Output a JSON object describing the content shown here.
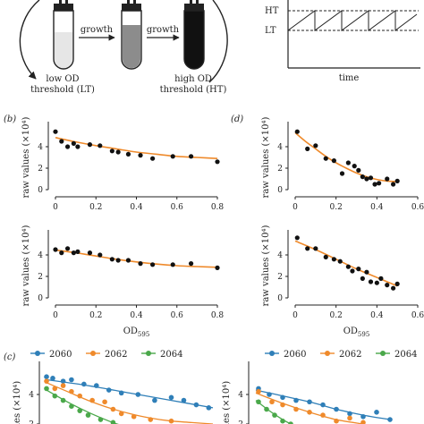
{
  "schematic": {
    "arrow_left": "growth",
    "arrow_right": "growth",
    "low_label_1": "low OD",
    "low_label_2": "threshold (LT)",
    "high_label_1": "high OD",
    "high_label_2": "threshold (HT)",
    "ht": "HT",
    "lt": "LT",
    "time": "time"
  },
  "colors": {
    "fit": "#ef8a2b",
    "dots": "#111111",
    "tube_low": "#e6e6e6",
    "tube_mid": "#8c8c8c",
    "tube_high": "#111111",
    "s2060": "#2f7fb8",
    "s2062": "#ef8a2b",
    "s2064": "#4aa84a"
  },
  "chart_data": [
    {
      "id": "b_top",
      "panel": "(b)",
      "type": "scatter",
      "xlim": [
        0,
        0.8
      ],
      "ylim": [
        0,
        6
      ],
      "xticks": [
        "0",
        "0.2",
        "0.4",
        "0.6",
        "0.8"
      ],
      "yticks": [
        "0",
        "2",
        "4"
      ],
      "ylabel": "raw values (×10⁴)",
      "points": [
        [
          0.0,
          5.4
        ],
        [
          0.03,
          4.5
        ],
        [
          0.06,
          4.0
        ],
        [
          0.09,
          4.3
        ],
        [
          0.11,
          4.0
        ],
        [
          0.17,
          4.2
        ],
        [
          0.22,
          4.1
        ],
        [
          0.28,
          3.6
        ],
        [
          0.31,
          3.5
        ],
        [
          0.36,
          3.3
        ],
        [
          0.42,
          3.2
        ],
        [
          0.48,
          2.9
        ],
        [
          0.58,
          3.1
        ],
        [
          0.67,
          3.1
        ],
        [
          0.8,
          2.6
        ]
      ],
      "fit": [
        [
          0,
          4.85
        ],
        [
          0.1,
          4.45
        ],
        [
          0.2,
          4.1
        ],
        [
          0.3,
          3.8
        ],
        [
          0.4,
          3.5
        ],
        [
          0.5,
          3.3
        ],
        [
          0.6,
          3.1
        ],
        [
          0.7,
          3.0
        ],
        [
          0.8,
          2.9
        ]
      ]
    },
    {
      "id": "b_bottom",
      "type": "scatter",
      "xlim": [
        0,
        0.8
      ],
      "ylim": [
        0,
        6
      ],
      "xticks": [
        "0",
        "0.2",
        "0.4",
        "0.6",
        "0.8"
      ],
      "yticks": [
        "0",
        "2",
        "4"
      ],
      "ylabel": "raw values (×10⁴)",
      "xlabel": "OD",
      "xlabel_sub": "595",
      "points": [
        [
          0.0,
          4.5
        ],
        [
          0.03,
          4.2
        ],
        [
          0.06,
          4.6
        ],
        [
          0.09,
          4.2
        ],
        [
          0.11,
          4.3
        ],
        [
          0.17,
          4.2
        ],
        [
          0.22,
          4.0
        ],
        [
          0.28,
          3.6
        ],
        [
          0.31,
          3.5
        ],
        [
          0.36,
          3.5
        ],
        [
          0.42,
          3.2
        ],
        [
          0.48,
          3.1
        ],
        [
          0.58,
          3.1
        ],
        [
          0.67,
          3.2
        ],
        [
          0.8,
          2.8
        ]
      ],
      "fit": [
        [
          0,
          4.45
        ],
        [
          0.1,
          4.2
        ],
        [
          0.2,
          3.9
        ],
        [
          0.3,
          3.6
        ],
        [
          0.4,
          3.35
        ],
        [
          0.5,
          3.15
        ],
        [
          0.6,
          3.0
        ],
        [
          0.7,
          2.92
        ],
        [
          0.8,
          2.85
        ]
      ]
    },
    {
      "id": "d_top",
      "panel": "(d)",
      "type": "scatter",
      "xlim": [
        0,
        0.6
      ],
      "ylim": [
        0,
        6
      ],
      "xticks": [
        "0",
        "0.2",
        "0.4",
        "0.6"
      ],
      "yticks": [
        "0",
        "2",
        "4"
      ],
      "ylabel": "raw values (×10⁴)",
      "points": [
        [
          0.01,
          5.4
        ],
        [
          0.06,
          3.8
        ],
        [
          0.1,
          4.1
        ],
        [
          0.15,
          2.9
        ],
        [
          0.19,
          2.7
        ],
        [
          0.23,
          1.5
        ],
        [
          0.26,
          2.5
        ],
        [
          0.29,
          2.2
        ],
        [
          0.31,
          1.8
        ],
        [
          0.33,
          1.2
        ],
        [
          0.35,
          1.0
        ],
        [
          0.37,
          1.1
        ],
        [
          0.39,
          0.5
        ],
        [
          0.41,
          0.6
        ],
        [
          0.45,
          1.0
        ],
        [
          0.48,
          0.5
        ],
        [
          0.5,
          0.8
        ]
      ],
      "fit": [
        [
          0,
          5.3
        ],
        [
          0.05,
          4.5
        ],
        [
          0.1,
          3.8
        ],
        [
          0.15,
          3.1
        ],
        [
          0.2,
          2.5
        ],
        [
          0.25,
          2.0
        ],
        [
          0.3,
          1.55
        ],
        [
          0.35,
          1.2
        ],
        [
          0.4,
          0.95
        ],
        [
          0.45,
          0.8
        ],
        [
          0.5,
          0.75
        ]
      ]
    },
    {
      "id": "d_bottom",
      "type": "scatter",
      "xlim": [
        0,
        0.6
      ],
      "ylim": [
        0,
        6
      ],
      "xticks": [
        "0",
        "0.2",
        "0.4",
        "0.6"
      ],
      "yticks": [
        "0",
        "2",
        "4"
      ],
      "ylabel": "raw values (×10⁴)",
      "xlabel": "OD",
      "xlabel_sub": "595",
      "points": [
        [
          0.01,
          5.6
        ],
        [
          0.06,
          4.6
        ],
        [
          0.1,
          4.6
        ],
        [
          0.15,
          3.8
        ],
        [
          0.19,
          3.6
        ],
        [
          0.22,
          3.4
        ],
        [
          0.26,
          2.9
        ],
        [
          0.28,
          2.5
        ],
        [
          0.31,
          2.7
        ],
        [
          0.33,
          1.8
        ],
        [
          0.35,
          2.4
        ],
        [
          0.37,
          1.5
        ],
        [
          0.4,
          1.4
        ],
        [
          0.42,
          1.8
        ],
        [
          0.45,
          1.2
        ],
        [
          0.48,
          0.9
        ],
        [
          0.5,
          1.3
        ]
      ],
      "fit": [
        [
          0,
          5.3
        ],
        [
          0.1,
          4.5
        ],
        [
          0.2,
          3.6
        ],
        [
          0.3,
          2.7
        ],
        [
          0.4,
          1.9
        ],
        [
          0.5,
          1.1
        ]
      ]
    },
    {
      "id": "c_left",
      "panel": "(c)",
      "type": "line",
      "xlim": [
        0,
        0.8
      ],
      "ylim": [
        2,
        6
      ],
      "yticks": [
        "2",
        "4"
      ],
      "ylabel": "values (×10⁴)",
      "legend": [
        "2060",
        "2062",
        "2064"
      ],
      "series": [
        {
          "name": "2060",
          "color": "#2f7fb8",
          "points": [
            [
              0.0,
              5.2
            ],
            [
              0.03,
              5.1
            ],
            [
              0.08,
              4.9
            ],
            [
              0.12,
              5.0
            ],
            [
              0.18,
              4.7
            ],
            [
              0.24,
              4.6
            ],
            [
              0.3,
              4.3
            ],
            [
              0.36,
              4.1
            ],
            [
              0.44,
              4.0
            ],
            [
              0.52,
              3.6
            ],
            [
              0.6,
              3.8
            ],
            [
              0.66,
              3.6
            ],
            [
              0.72,
              3.3
            ],
            [
              0.78,
              3.1
            ]
          ],
          "fit": [
            [
              0,
              5.0
            ],
            [
              0.2,
              4.6
            ],
            [
              0.4,
              4.1
            ],
            [
              0.6,
              3.6
            ],
            [
              0.8,
              3.1
            ]
          ]
        },
        {
          "name": "2062",
          "color": "#ef8a2b",
          "points": [
            [
              0.0,
              4.9
            ],
            [
              0.04,
              4.4
            ],
            [
              0.08,
              4.6
            ],
            [
              0.12,
              4.2
            ],
            [
              0.16,
              3.9
            ],
            [
              0.22,
              3.6
            ],
            [
              0.28,
              3.5
            ],
            [
              0.32,
              3.0
            ],
            [
              0.36,
              2.7
            ],
            [
              0.42,
              2.5
            ],
            [
              0.5,
              2.3
            ],
            [
              0.6,
              2.2
            ]
          ],
          "fit": [
            [
              0,
              4.8
            ],
            [
              0.1,
              4.2
            ],
            [
              0.2,
              3.6
            ],
            [
              0.3,
              3.1
            ],
            [
              0.4,
              2.7
            ],
            [
              0.5,
              2.4
            ],
            [
              0.6,
              2.2
            ],
            [
              0.7,
              2.1
            ],
            [
              0.8,
              2.0
            ]
          ]
        },
        {
          "name": "2064",
          "color": "#4aa84a",
          "points": [
            [
              0.0,
              4.4
            ],
            [
              0.04,
              3.9
            ],
            [
              0.08,
              3.6
            ],
            [
              0.12,
              3.2
            ],
            [
              0.16,
              2.9
            ],
            [
              0.2,
              2.6
            ],
            [
              0.26,
              2.3
            ],
            [
              0.32,
              2.1
            ]
          ],
          "fit": [
            [
              0,
              4.3
            ],
            [
              0.1,
              3.5
            ],
            [
              0.2,
              2.8
            ],
            [
              0.3,
              2.2
            ],
            [
              0.36,
              1.9
            ]
          ]
        }
      ]
    },
    {
      "id": "c_right",
      "type": "line",
      "xlim": [
        0,
        0.6
      ],
      "ylim": [
        2,
        6
      ],
      "yticks": [
        "2",
        "4"
      ],
      "ylabel": "values (×10⁴)",
      "legend": [
        "2060",
        "2062",
        "2064"
      ],
      "series": [
        {
          "name": "2060",
          "color": "#2f7fb8",
          "points": [
            [
              0.01,
              4.4
            ],
            [
              0.05,
              4.0
            ],
            [
              0.1,
              3.8
            ],
            [
              0.15,
              3.6
            ],
            [
              0.2,
              3.5
            ],
            [
              0.25,
              3.3
            ],
            [
              0.3,
              3.0
            ],
            [
              0.35,
              2.7
            ],
            [
              0.4,
              2.5
            ],
            [
              0.45,
              2.8
            ],
            [
              0.5,
              2.3
            ]
          ],
          "fit": [
            [
              0,
              4.3
            ],
            [
              0.1,
              3.9
            ],
            [
              0.2,
              3.5
            ],
            [
              0.3,
              3.0
            ],
            [
              0.4,
              2.6
            ],
            [
              0.5,
              2.3
            ]
          ]
        },
        {
          "name": "2062",
          "color": "#ef8a2b",
          "points": [
            [
              0.01,
              4.2
            ],
            [
              0.06,
              3.5
            ],
            [
              0.1,
              3.3
            ],
            [
              0.15,
              3.0
            ],
            [
              0.2,
              2.8
            ],
            [
              0.25,
              2.6
            ],
            [
              0.3,
              2.2
            ],
            [
              0.35,
              2.4
            ],
            [
              0.4,
              2.1
            ]
          ],
          "fit": [
            [
              0,
              4.1
            ],
            [
              0.1,
              3.4
            ],
            [
              0.2,
              2.8
            ],
            [
              0.3,
              2.3
            ],
            [
              0.4,
              2.0
            ]
          ]
        },
        {
          "name": "2064",
          "color": "#4aa84a",
          "points": [
            [
              0.01,
              3.5
            ],
            [
              0.04,
              3.0
            ],
            [
              0.07,
              2.6
            ],
            [
              0.1,
              2.2
            ],
            [
              0.13,
              2.0
            ]
          ],
          "fit": [
            [
              0,
              3.6
            ],
            [
              0.05,
              2.9
            ],
            [
              0.1,
              2.3
            ],
            [
              0.14,
              1.9
            ]
          ]
        }
      ]
    }
  ]
}
